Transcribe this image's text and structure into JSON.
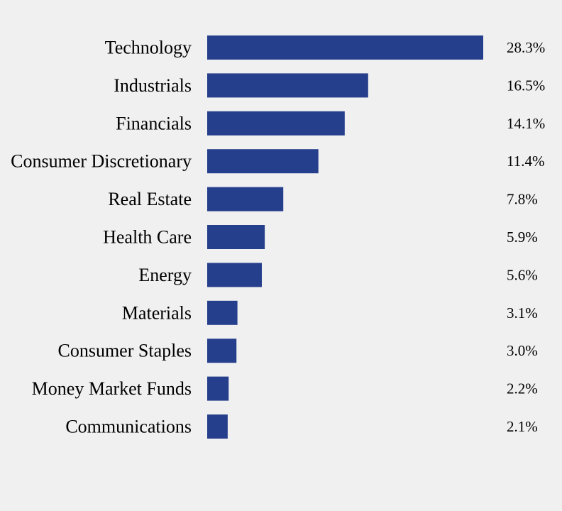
{
  "chart_data": {
    "type": "bar",
    "orientation": "horizontal",
    "title": "",
    "xlabel": "",
    "ylabel": "",
    "categories": [
      "Technology",
      "Industrials",
      "Financials",
      "Consumer Discretionary",
      "Real Estate",
      "Health Care",
      "Energy",
      "Materials",
      "Consumer Staples",
      "Money Market Funds",
      "Communications"
    ],
    "values": [
      28.3,
      16.5,
      14.1,
      11.4,
      7.8,
      5.9,
      5.6,
      3.1,
      3.0,
      2.2,
      2.1
    ],
    "value_labels": [
      "28.3%",
      "16.5%",
      "14.1%",
      "11.4%",
      "7.8%",
      "5.9%",
      "5.6%",
      "3.1%",
      "3.0%",
      "2.2%",
      "2.1%"
    ],
    "xlim": [
      0,
      28.3
    ],
    "grid": false,
    "legend": "none",
    "colors": {
      "bar": "#263f8c",
      "background": "#f0f0f1",
      "text": "#000000"
    }
  }
}
